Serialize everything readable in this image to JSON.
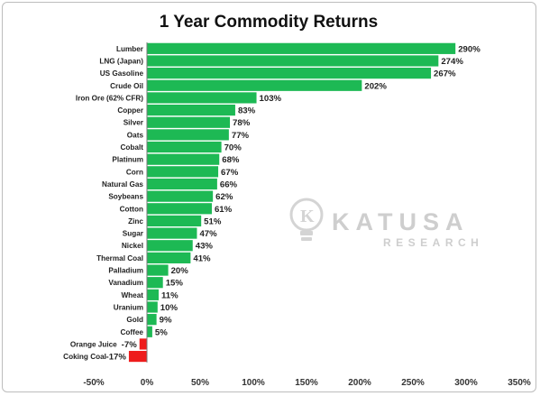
{
  "chart_data": {
    "type": "bar",
    "orientation": "horizontal",
    "title": "1 Year Commodity Returns",
    "xlabel": "",
    "ylabel": "",
    "unit": "%",
    "xlim": [
      -50,
      350
    ],
    "xticks": [
      -50,
      0,
      50,
      100,
      150,
      200,
      250,
      300,
      350
    ],
    "grid": false,
    "legend": "none",
    "categories": [
      "Lumber",
      "LNG (Japan)",
      "US Gasoline",
      "Crude Oil",
      "Iron Ore (62% CFR)",
      "Copper",
      "Silver",
      "Oats",
      "Cobalt",
      "Platinum",
      "Corn",
      "Natural Gas",
      "Soybeans",
      "Cotton",
      "Zinc",
      "Sugar",
      "Nickel",
      "Thermal Coal",
      "Palladium",
      "Vanadium",
      "Wheat",
      "Uranium",
      "Gold",
      "Coffee",
      "Orange Juice",
      "Coking Coal"
    ],
    "values": [
      290,
      274,
      267,
      202,
      103,
      83,
      78,
      77,
      70,
      68,
      67,
      66,
      62,
      61,
      51,
      47,
      43,
      41,
      20,
      15,
      11,
      10,
      9,
      5,
      -7,
      -17
    ],
    "colors": {
      "positive": "#1db954",
      "negative": "#ee1c1c"
    }
  },
  "watermark": {
    "brand": "KATUSA",
    "sub": "RESEARCH",
    "icon": "lightbulb-k-icon",
    "color": "#c9c9c9"
  }
}
